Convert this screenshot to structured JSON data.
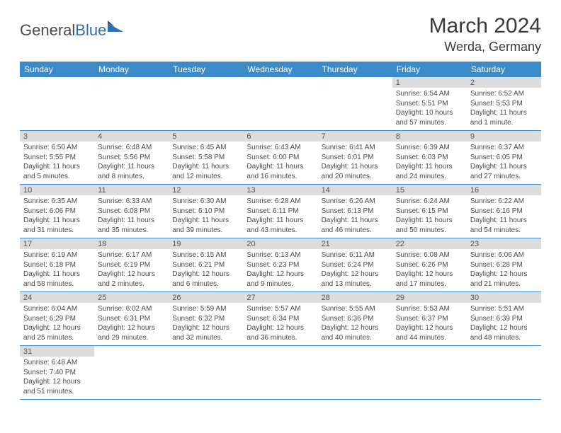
{
  "logo": {
    "text_dark": "General",
    "text_blue": "Blue"
  },
  "title": "March 2024",
  "location": "Werda, Germany",
  "colors": {
    "header_bg": "#3b8bc9",
    "header_fg": "#ffffff",
    "daynum_bg": "#dcdcdc",
    "daynum_fg": "#555555",
    "text": "#4a4a4a",
    "divider": "#3b8bc9",
    "logo_blue": "#2d6fb5"
  },
  "weekdays": [
    "Sunday",
    "Monday",
    "Tuesday",
    "Wednesday",
    "Thursday",
    "Friday",
    "Saturday"
  ],
  "weeks": [
    [
      null,
      null,
      null,
      null,
      null,
      {
        "n": "1",
        "sr": "Sunrise: 6:54 AM",
        "ss": "Sunset: 5:51 PM",
        "d1": "Daylight: 10 hours",
        "d2": "and 57 minutes."
      },
      {
        "n": "2",
        "sr": "Sunrise: 6:52 AM",
        "ss": "Sunset: 5:53 PM",
        "d1": "Daylight: 11 hours",
        "d2": "and 1 minute."
      }
    ],
    [
      {
        "n": "3",
        "sr": "Sunrise: 6:50 AM",
        "ss": "Sunset: 5:55 PM",
        "d1": "Daylight: 11 hours",
        "d2": "and 5 minutes."
      },
      {
        "n": "4",
        "sr": "Sunrise: 6:48 AM",
        "ss": "Sunset: 5:56 PM",
        "d1": "Daylight: 11 hours",
        "d2": "and 8 minutes."
      },
      {
        "n": "5",
        "sr": "Sunrise: 6:45 AM",
        "ss": "Sunset: 5:58 PM",
        "d1": "Daylight: 11 hours",
        "d2": "and 12 minutes."
      },
      {
        "n": "6",
        "sr": "Sunrise: 6:43 AM",
        "ss": "Sunset: 6:00 PM",
        "d1": "Daylight: 11 hours",
        "d2": "and 16 minutes."
      },
      {
        "n": "7",
        "sr": "Sunrise: 6:41 AM",
        "ss": "Sunset: 6:01 PM",
        "d1": "Daylight: 11 hours",
        "d2": "and 20 minutes."
      },
      {
        "n": "8",
        "sr": "Sunrise: 6:39 AM",
        "ss": "Sunset: 6:03 PM",
        "d1": "Daylight: 11 hours",
        "d2": "and 24 minutes."
      },
      {
        "n": "9",
        "sr": "Sunrise: 6:37 AM",
        "ss": "Sunset: 6:05 PM",
        "d1": "Daylight: 11 hours",
        "d2": "and 27 minutes."
      }
    ],
    [
      {
        "n": "10",
        "sr": "Sunrise: 6:35 AM",
        "ss": "Sunset: 6:06 PM",
        "d1": "Daylight: 11 hours",
        "d2": "and 31 minutes."
      },
      {
        "n": "11",
        "sr": "Sunrise: 6:33 AM",
        "ss": "Sunset: 6:08 PM",
        "d1": "Daylight: 11 hours",
        "d2": "and 35 minutes."
      },
      {
        "n": "12",
        "sr": "Sunrise: 6:30 AM",
        "ss": "Sunset: 6:10 PM",
        "d1": "Daylight: 11 hours",
        "d2": "and 39 minutes."
      },
      {
        "n": "13",
        "sr": "Sunrise: 6:28 AM",
        "ss": "Sunset: 6:11 PM",
        "d1": "Daylight: 11 hours",
        "d2": "and 43 minutes."
      },
      {
        "n": "14",
        "sr": "Sunrise: 6:26 AM",
        "ss": "Sunset: 6:13 PM",
        "d1": "Daylight: 11 hours",
        "d2": "and 46 minutes."
      },
      {
        "n": "15",
        "sr": "Sunrise: 6:24 AM",
        "ss": "Sunset: 6:15 PM",
        "d1": "Daylight: 11 hours",
        "d2": "and 50 minutes."
      },
      {
        "n": "16",
        "sr": "Sunrise: 6:22 AM",
        "ss": "Sunset: 6:16 PM",
        "d1": "Daylight: 11 hours",
        "d2": "and 54 minutes."
      }
    ],
    [
      {
        "n": "17",
        "sr": "Sunrise: 6:19 AM",
        "ss": "Sunset: 6:18 PM",
        "d1": "Daylight: 11 hours",
        "d2": "and 58 minutes."
      },
      {
        "n": "18",
        "sr": "Sunrise: 6:17 AM",
        "ss": "Sunset: 6:19 PM",
        "d1": "Daylight: 12 hours",
        "d2": "and 2 minutes."
      },
      {
        "n": "19",
        "sr": "Sunrise: 6:15 AM",
        "ss": "Sunset: 6:21 PM",
        "d1": "Daylight: 12 hours",
        "d2": "and 6 minutes."
      },
      {
        "n": "20",
        "sr": "Sunrise: 6:13 AM",
        "ss": "Sunset: 6:23 PM",
        "d1": "Daylight: 12 hours",
        "d2": "and 9 minutes."
      },
      {
        "n": "21",
        "sr": "Sunrise: 6:11 AM",
        "ss": "Sunset: 6:24 PM",
        "d1": "Daylight: 12 hours",
        "d2": "and 13 minutes."
      },
      {
        "n": "22",
        "sr": "Sunrise: 6:08 AM",
        "ss": "Sunset: 6:26 PM",
        "d1": "Daylight: 12 hours",
        "d2": "and 17 minutes."
      },
      {
        "n": "23",
        "sr": "Sunrise: 6:06 AM",
        "ss": "Sunset: 6:28 PM",
        "d1": "Daylight: 12 hours",
        "d2": "and 21 minutes."
      }
    ],
    [
      {
        "n": "24",
        "sr": "Sunrise: 6:04 AM",
        "ss": "Sunset: 6:29 PM",
        "d1": "Daylight: 12 hours",
        "d2": "and 25 minutes."
      },
      {
        "n": "25",
        "sr": "Sunrise: 6:02 AM",
        "ss": "Sunset: 6:31 PM",
        "d1": "Daylight: 12 hours",
        "d2": "and 29 minutes."
      },
      {
        "n": "26",
        "sr": "Sunrise: 5:59 AM",
        "ss": "Sunset: 6:32 PM",
        "d1": "Daylight: 12 hours",
        "d2": "and 32 minutes."
      },
      {
        "n": "27",
        "sr": "Sunrise: 5:57 AM",
        "ss": "Sunset: 6:34 PM",
        "d1": "Daylight: 12 hours",
        "d2": "and 36 minutes."
      },
      {
        "n": "28",
        "sr": "Sunrise: 5:55 AM",
        "ss": "Sunset: 6:36 PM",
        "d1": "Daylight: 12 hours",
        "d2": "and 40 minutes."
      },
      {
        "n": "29",
        "sr": "Sunrise: 5:53 AM",
        "ss": "Sunset: 6:37 PM",
        "d1": "Daylight: 12 hours",
        "d2": "and 44 minutes."
      },
      {
        "n": "30",
        "sr": "Sunrise: 5:51 AM",
        "ss": "Sunset: 6:39 PM",
        "d1": "Daylight: 12 hours",
        "d2": "and 48 minutes."
      }
    ],
    [
      {
        "n": "31",
        "sr": "Sunrise: 6:48 AM",
        "ss": "Sunset: 7:40 PM",
        "d1": "Daylight: 12 hours",
        "d2": "and 51 minutes."
      },
      null,
      null,
      null,
      null,
      null,
      null
    ]
  ]
}
